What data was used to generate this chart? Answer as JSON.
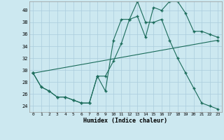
{
  "xlabel": "Humidex (Indice chaleur)",
  "xlim": [
    -0.5,
    23.5
  ],
  "ylim": [
    23.0,
    41.5
  ],
  "xticks": [
    0,
    1,
    2,
    3,
    4,
    5,
    6,
    7,
    8,
    9,
    10,
    11,
    12,
    13,
    14,
    15,
    16,
    17,
    18,
    19,
    20,
    21,
    22,
    23
  ],
  "yticks": [
    24,
    26,
    28,
    30,
    32,
    34,
    36,
    38,
    40
  ],
  "line_color": "#1a6b5a",
  "bg_color": "#cce8f0",
  "grid_color": "#aaccdd",
  "line1_x": [
    0,
    1,
    2,
    3,
    4,
    5,
    6,
    7,
    8,
    9,
    10,
    11,
    12,
    13,
    14,
    15,
    16,
    17,
    18,
    19,
    20,
    21,
    22,
    23
  ],
  "line1_y": [
    29.5,
    27.2,
    26.5,
    25.5,
    25.5,
    25.0,
    24.5,
    24.5,
    29.0,
    26.5,
    35.0,
    38.5,
    38.5,
    39.0,
    35.5,
    40.5,
    40.0,
    41.5,
    41.5,
    39.5,
    36.5,
    36.5,
    36.0,
    35.5
  ],
  "line2_x": [
    0,
    1,
    2,
    3,
    4,
    5,
    6,
    7,
    8,
    9,
    10,
    11,
    12,
    13,
    14,
    15,
    16,
    17,
    18,
    19,
    20,
    21,
    22,
    23
  ],
  "line2_y": [
    29.5,
    27.2,
    26.5,
    25.5,
    25.5,
    25.0,
    24.5,
    24.5,
    29.0,
    29.0,
    31.5,
    34.5,
    38.5,
    41.5,
    38.0,
    38.0,
    38.5,
    35.0,
    32.0,
    29.5,
    27.0,
    24.5,
    24.0,
    23.5
  ],
  "line3_x": [
    0,
    23
  ],
  "line3_y": [
    29.5,
    35.0
  ]
}
